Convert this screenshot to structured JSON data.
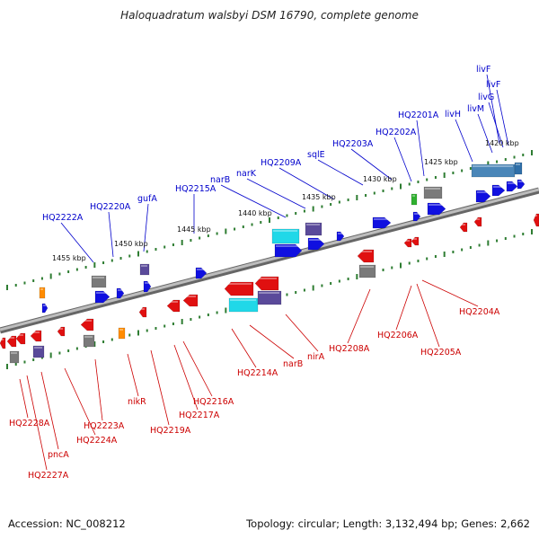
{
  "title": "Haloquadratum walsbyi DSM 16790, complete genome",
  "footer": {
    "accession": "Accession: NC_008212",
    "topology": "Topology: circular; Length: 3,132,494 bp; Genes: 2,662"
  },
  "colors": {
    "upper_label": "#0000cc",
    "lower_label": "#cc0000",
    "backbone": "#8a8a8a",
    "ticks": "#2e7d32",
    "forward_gene": "#1010e0",
    "reverse_gene": "#e01010",
    "rna": "#20d8e8",
    "other": "#5a4a9a",
    "pseudo": "#7a7a7a"
  },
  "kbp_ticks": [
    "1420 kbp",
    "1425 kbp",
    "1430 kbp",
    "1435 kbp",
    "1440 kbp",
    "1445 kbp",
    "1450 kbp",
    "1455 kbp"
  ],
  "upper_labels": [
    "livF",
    "livF",
    "livG",
    "livM",
    "livH",
    "HQ2201A",
    "HQ2202A",
    "HQ2203A",
    "sqlE",
    "HQ2209A",
    "narK",
    "narB",
    "HQ2215A",
    "gufA",
    "HQ2220A",
    "HQ2222A"
  ],
  "lower_labels": [
    "HQ2204A",
    "HQ2205A",
    "HQ2206A",
    "HQ2208A",
    "nirA",
    "narB",
    "HQ2214A",
    "HQ2216A",
    "HQ2217A",
    "HQ2219A",
    "nikR",
    "HQ2223A",
    "HQ2224A",
    "pncA",
    "HQ2227A",
    "HQ2228A"
  ]
}
